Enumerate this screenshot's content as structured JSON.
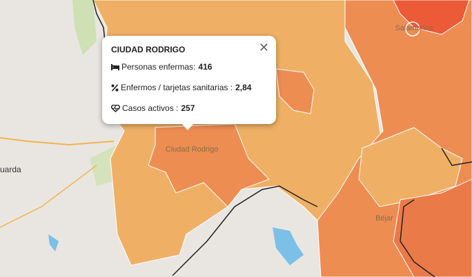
{
  "popup": {
    "title": "CIUDAD RODRIGO",
    "rows": [
      {
        "label": "Personas enfermas:",
        "value": "416"
      },
      {
        "label": "Enfermos / tarjetas sanitarias :",
        "value": "2,84"
      },
      {
        "label": "Casos activos :",
        "value": "257"
      }
    ]
  },
  "map_labels": {
    "ciudad_rodrigo": "Ciudad Rodrigo",
    "bejar": "Béjar",
    "salamanca": "Salamanca",
    "guarda": "uarda"
  }
}
